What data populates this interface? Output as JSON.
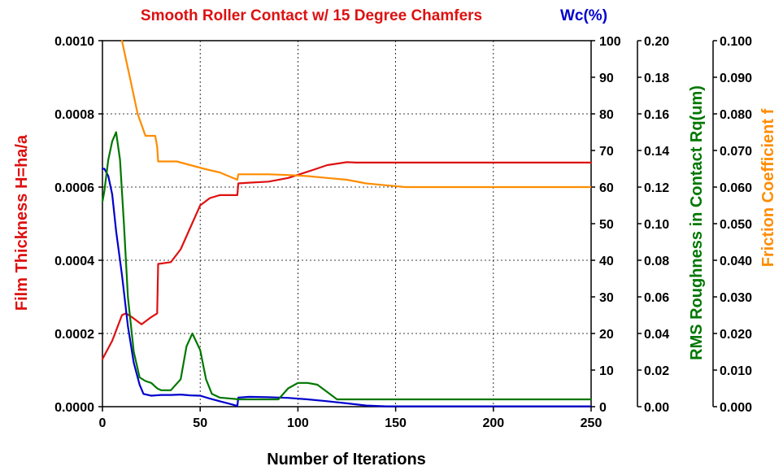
{
  "chart_data": {
    "type": "line",
    "title": "Smooth Roller Contact w/ 15 Degree Chamfers",
    "title_secondary": "Wc(%)",
    "xlabel": "Number of Iterations",
    "xlim": [
      0,
      250
    ],
    "xticks": [
      0,
      50,
      100,
      150,
      200,
      250
    ],
    "grid": true,
    "legend": "none",
    "colors": {
      "film": "#dd1111",
      "wc": "#0000cc",
      "rms": "#007700",
      "friction": "#ff8c00"
    },
    "axes": [
      {
        "id": "film",
        "label": "Film Thickness H=ha/a",
        "side": "left",
        "lim": [
          0,
          0.001
        ],
        "ticks": [
          "0.0000",
          "0.0002",
          "0.0004",
          "0.0006",
          "0.0008",
          "0.0010"
        ]
      },
      {
        "id": "wc",
        "label": "",
        "side": "right",
        "lim": [
          0,
          100
        ],
        "ticks": [
          "0",
          "10",
          "20",
          "30",
          "40",
          "50",
          "60",
          "70",
          "80",
          "90",
          "100"
        ]
      },
      {
        "id": "rms",
        "label": "RMS Roughness in Contact Rq(um)",
        "side": "right",
        "lim": [
          0,
          0.2
        ],
        "ticks": [
          "0.00",
          "0.02",
          "0.04",
          "0.06",
          "0.08",
          "0.10",
          "0.12",
          "0.14",
          "0.16",
          "0.18",
          "0.20"
        ]
      },
      {
        "id": "friction",
        "label": "Friction Coefficient f",
        "side": "right",
        "lim": [
          0,
          0.1
        ],
        "ticks": [
          "0.000",
          "0.010",
          "0.020",
          "0.030",
          "0.040",
          "0.050",
          "0.060",
          "0.070",
          "0.080",
          "0.090",
          "0.100"
        ]
      }
    ],
    "series": [
      {
        "axis": "film",
        "color": "#dd1111",
        "x": [
          0,
          5,
          10,
          12,
          15,
          20,
          25,
          28,
          28.5,
          35,
          40,
          45,
          50,
          55,
          60,
          69,
          69.5,
          75,
          85,
          95,
          105,
          115,
          125,
          130,
          150,
          250
        ],
        "y": [
          0.00013,
          0.00018,
          0.00025,
          0.000255,
          0.000245,
          0.000225,
          0.000245,
          0.000255,
          0.00039,
          0.000395,
          0.00043,
          0.00049,
          0.00055,
          0.00057,
          0.000578,
          0.000578,
          0.00061,
          0.000612,
          0.000615,
          0.000625,
          0.000642,
          0.00066,
          0.000668,
          0.000667,
          0.000667,
          0.000667
        ]
      },
      {
        "axis": "wc",
        "color": "#0000cc",
        "x": [
          0,
          1,
          3,
          5,
          7,
          10,
          13,
          16,
          19,
          21,
          25,
          30,
          35,
          40,
          45,
          50,
          55,
          60,
          65,
          69,
          69.5,
          75,
          85,
          95,
          105,
          115,
          125,
          135,
          145,
          250
        ],
        "y": [
          65,
          65,
          63,
          58,
          48,
          36,
          22,
          12,
          6,
          3.5,
          3,
          3.2,
          3.2,
          3.3,
          3.1,
          3,
          2.2,
          1.5,
          0.8,
          0.2,
          2.5,
          2.7,
          2.6,
          2.4,
          2.0,
          1.5,
          0.9,
          0.3,
          0.1,
          0.1
        ]
      },
      {
        "axis": "rms",
        "color": "#007700",
        "x": [
          0,
          1,
          3,
          5,
          7,
          9,
          11,
          13,
          16,
          19,
          22,
          25,
          27,
          28,
          30,
          35,
          40,
          43,
          46,
          50,
          53,
          56,
          60,
          70,
          80,
          85,
          90,
          95,
          100,
          105,
          110,
          115,
          120,
          130,
          250
        ],
        "y": [
          0.112,
          0.118,
          0.135,
          0.145,
          0.15,
          0.135,
          0.1,
          0.06,
          0.03,
          0.016,
          0.014,
          0.013,
          0.011,
          0.01,
          0.009,
          0.009,
          0.015,
          0.033,
          0.04,
          0.031,
          0.015,
          0.007,
          0.005,
          0.004,
          0.004,
          0.004,
          0.004,
          0.01,
          0.013,
          0.013,
          0.012,
          0.008,
          0.004,
          0.004,
          0.004
        ]
      },
      {
        "axis": "friction",
        "color": "#ff8c00",
        "x": [
          10,
          12,
          14,
          16,
          18,
          20,
          22,
          25,
          27,
          28,
          28.5,
          32,
          38,
          45,
          52,
          60,
          69,
          69.5,
          75,
          85,
          95,
          105,
          115,
          125,
          135,
          145,
          155,
          165,
          250
        ],
        "y": [
          0.1,
          0.095,
          0.09,
          0.085,
          0.08,
          0.077,
          0.074,
          0.074,
          0.074,
          0.071,
          0.067,
          0.067,
          0.067,
          0.066,
          0.065,
          0.064,
          0.062,
          0.0635,
          0.0635,
          0.0635,
          0.0633,
          0.063,
          0.0625,
          0.062,
          0.061,
          0.0605,
          0.06,
          0.06,
          0.06
        ]
      }
    ]
  }
}
